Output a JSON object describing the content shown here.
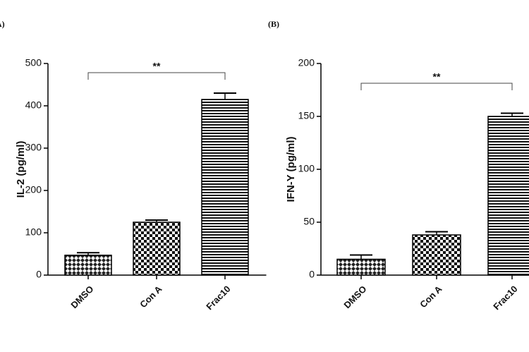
{
  "chart_data": [
    {
      "type": "bar",
      "panel_label": "(A)",
      "y_label": "IL-2 (pg/ml)",
      "categories": [
        "DMSO",
        "Con A",
        "Frac10"
      ],
      "values": [
        47,
        125,
        415
      ],
      "errors": [
        6,
        5,
        15
      ],
      "ylim": [
        0,
        500
      ],
      "yticks": [
        0,
        100,
        200,
        300,
        400,
        500
      ],
      "annotation": "**"
    },
    {
      "type": "bar",
      "panel_label": "(B)",
      "y_label": "IFN-Y (pg/ml)",
      "categories": [
        "DMSO",
        "Con A",
        "Frac10"
      ],
      "values": [
        15,
        38,
        150
      ],
      "errors": [
        4,
        3,
        3
      ],
      "ylim": [
        0,
        200
      ],
      "yticks": [
        0,
        50,
        100,
        150,
        200
      ],
      "annotation": "**"
    }
  ]
}
